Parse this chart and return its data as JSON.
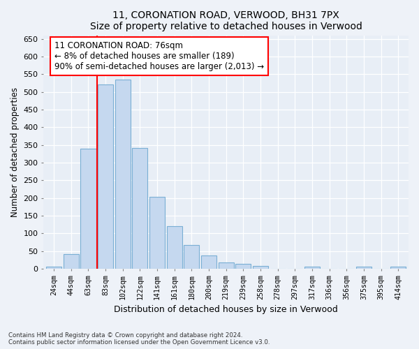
{
  "title": "11, CORONATION ROAD, VERWOOD, BH31 7PX",
  "subtitle": "Size of property relative to detached houses in Verwood",
  "xlabel": "Distribution of detached houses by size in Verwood",
  "ylabel": "Number of detached properties",
  "categories": [
    "24sqm",
    "44sqm",
    "63sqm",
    "83sqm",
    "102sqm",
    "122sqm",
    "141sqm",
    "161sqm",
    "180sqm",
    "200sqm",
    "219sqm",
    "239sqm",
    "258sqm",
    "278sqm",
    "297sqm",
    "317sqm",
    "336sqm",
    "356sqm",
    "375sqm",
    "395sqm",
    "414sqm"
  ],
  "values": [
    5,
    42,
    340,
    520,
    535,
    342,
    203,
    120,
    67,
    37,
    18,
    13,
    8,
    0,
    0,
    5,
    0,
    0,
    5,
    0,
    5
  ],
  "bar_color": "#c5d8ef",
  "bar_edgecolor": "#7aafd4",
  "vline_color": "red",
  "vline_pos": 2.5,
  "annotation_text": "11 CORONATION ROAD: 76sqm\n← 8% of detached houses are smaller (189)\n90% of semi-detached houses are larger (2,013) →",
  "ylim": [
    0,
    660
  ],
  "yticks": [
    0,
    50,
    100,
    150,
    200,
    250,
    300,
    350,
    400,
    450,
    500,
    550,
    600,
    650
  ],
  "footer_line1": "Contains HM Land Registry data © Crown copyright and database right 2024.",
  "footer_line2": "Contains public sector information licensed under the Open Government Licence v3.0.",
  "bg_color": "#eef2f8",
  "plot_bg_color": "#e8eef6"
}
